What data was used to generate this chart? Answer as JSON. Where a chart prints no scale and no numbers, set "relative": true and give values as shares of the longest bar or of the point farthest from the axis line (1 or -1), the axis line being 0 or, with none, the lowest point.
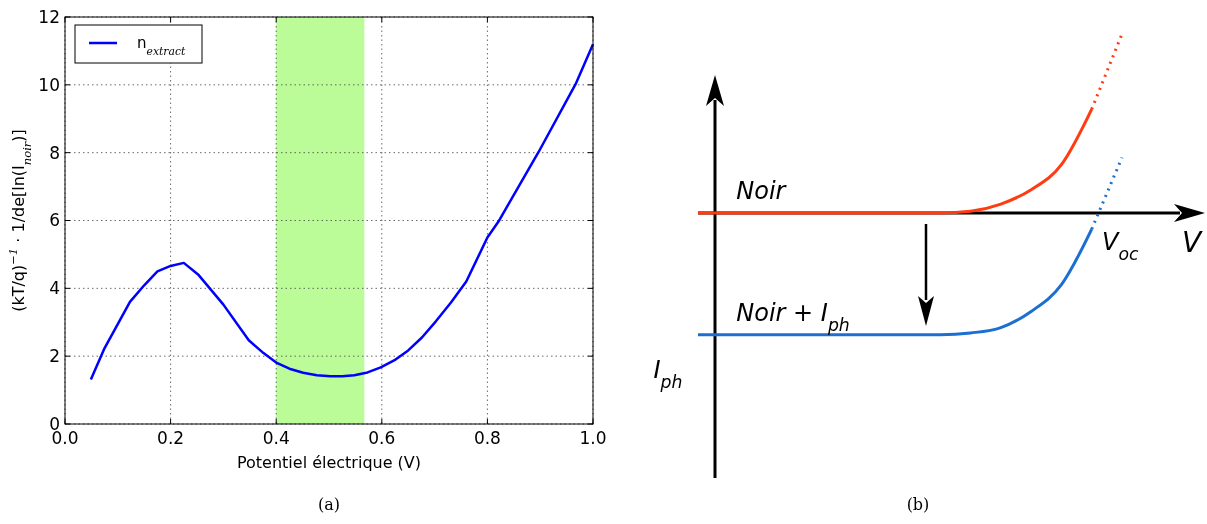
{
  "chart_data": [
    {
      "type": "line",
      "xlabel": "Potentiel électrique (V)",
      "ylabel": "(kT/q)$^{−1}$ · 1/de[ln(I$_{noir}$)]",
      "xlim": [
        0,
        1
      ],
      "ylim": [
        0,
        12
      ],
      "xticks": [
        {
          "value": 0,
          "label": "0.0"
        },
        {
          "value": 0.2,
          "label": "0.2"
        },
        {
          "value": 0.4,
          "label": "0.4"
        },
        {
          "value": 0.6,
          "label": "0.6"
        },
        {
          "value": 0.8,
          "label": "0.8"
        },
        {
          "value": 1,
          "label": "1.0"
        }
      ],
      "yticks": [
        0,
        2,
        4,
        6,
        8,
        10,
        12
      ],
      "grid": true,
      "legend": "top left",
      "bands": [
        {
          "axis": "x",
          "from": 0.4,
          "to": 0.567,
          "color": "#bbfb98"
        }
      ],
      "x": [
        0.049,
        0.075,
        0.123,
        0.15,
        0.175,
        0.2,
        0.225,
        0.252,
        0.3,
        0.348,
        0.376,
        0.4,
        0.425,
        0.451,
        0.477,
        0.503,
        0.525,
        0.548,
        0.573,
        0.598,
        0.626,
        0.65,
        0.676,
        0.702,
        0.731,
        0.76,
        0.8,
        0.821,
        0.897,
        0.967,
        1.0
      ],
      "series": [
        {
          "name": "n$_{extract}$",
          "color": "#0000ff",
          "values": [
            1.31,
            2.24,
            3.6,
            4.09,
            4.5,
            4.66,
            4.75,
            4.41,
            3.52,
            2.47,
            2.09,
            1.81,
            1.63,
            1.51,
            1.44,
            1.41,
            1.41,
            1.44,
            1.52,
            1.67,
            1.9,
            2.17,
            2.55,
            3.02,
            3.58,
            4.2,
            5.5,
            5.97,
            8.02,
            10.02,
            11.2
          ]
        }
      ],
      "annotations": [
        "(a)"
      ]
    },
    {
      "type": "line",
      "relative": true,
      "xlabel": "V",
      "categories": [
        null,
        null,
        null,
        null,
        null,
        null,
        null,
        null,
        null,
        null,
        null,
        null,
        null,
        null,
        null
      ],
      "series": [
        {
          "name": "Noir",
          "color": "#ff3b12",
          "values": [
            0,
            0,
            0,
            0,
            0,
            0,
            0,
            0,
            0,
            0.01,
            0.05,
            0.13,
            0.27,
            0.58,
            null
          ]
        },
        {
          "color": "#ff3b12",
          "line_style": "dotted",
          "values": [
            null,
            null,
            null,
            null,
            null,
            null,
            null,
            null,
            null,
            null,
            null,
            null,
            null,
            0.58,
            1.0
          ]
        },
        {
          "name": "Noir + I$_{ph}$",
          "color": "#1a6fd0",
          "values": [
            -0.68,
            -0.68,
            -0.68,
            -0.68,
            -0.68,
            -0.68,
            -0.68,
            -0.68,
            -0.68,
            -0.67,
            -0.64,
            -0.55,
            -0.4,
            -0.09,
            null
          ]
        },
        {
          "color": "#1a6fd0",
          "line_style": "dotted",
          "values": [
            null,
            null,
            null,
            null,
            null,
            null,
            null,
            null,
            null,
            null,
            null,
            null,
            null,
            -0.09,
            0.31
          ]
        }
      ],
      "annotations": [
        "V$_{oc}$",
        "I$_{ph}$",
        "(b)"
      ]
    }
  ]
}
